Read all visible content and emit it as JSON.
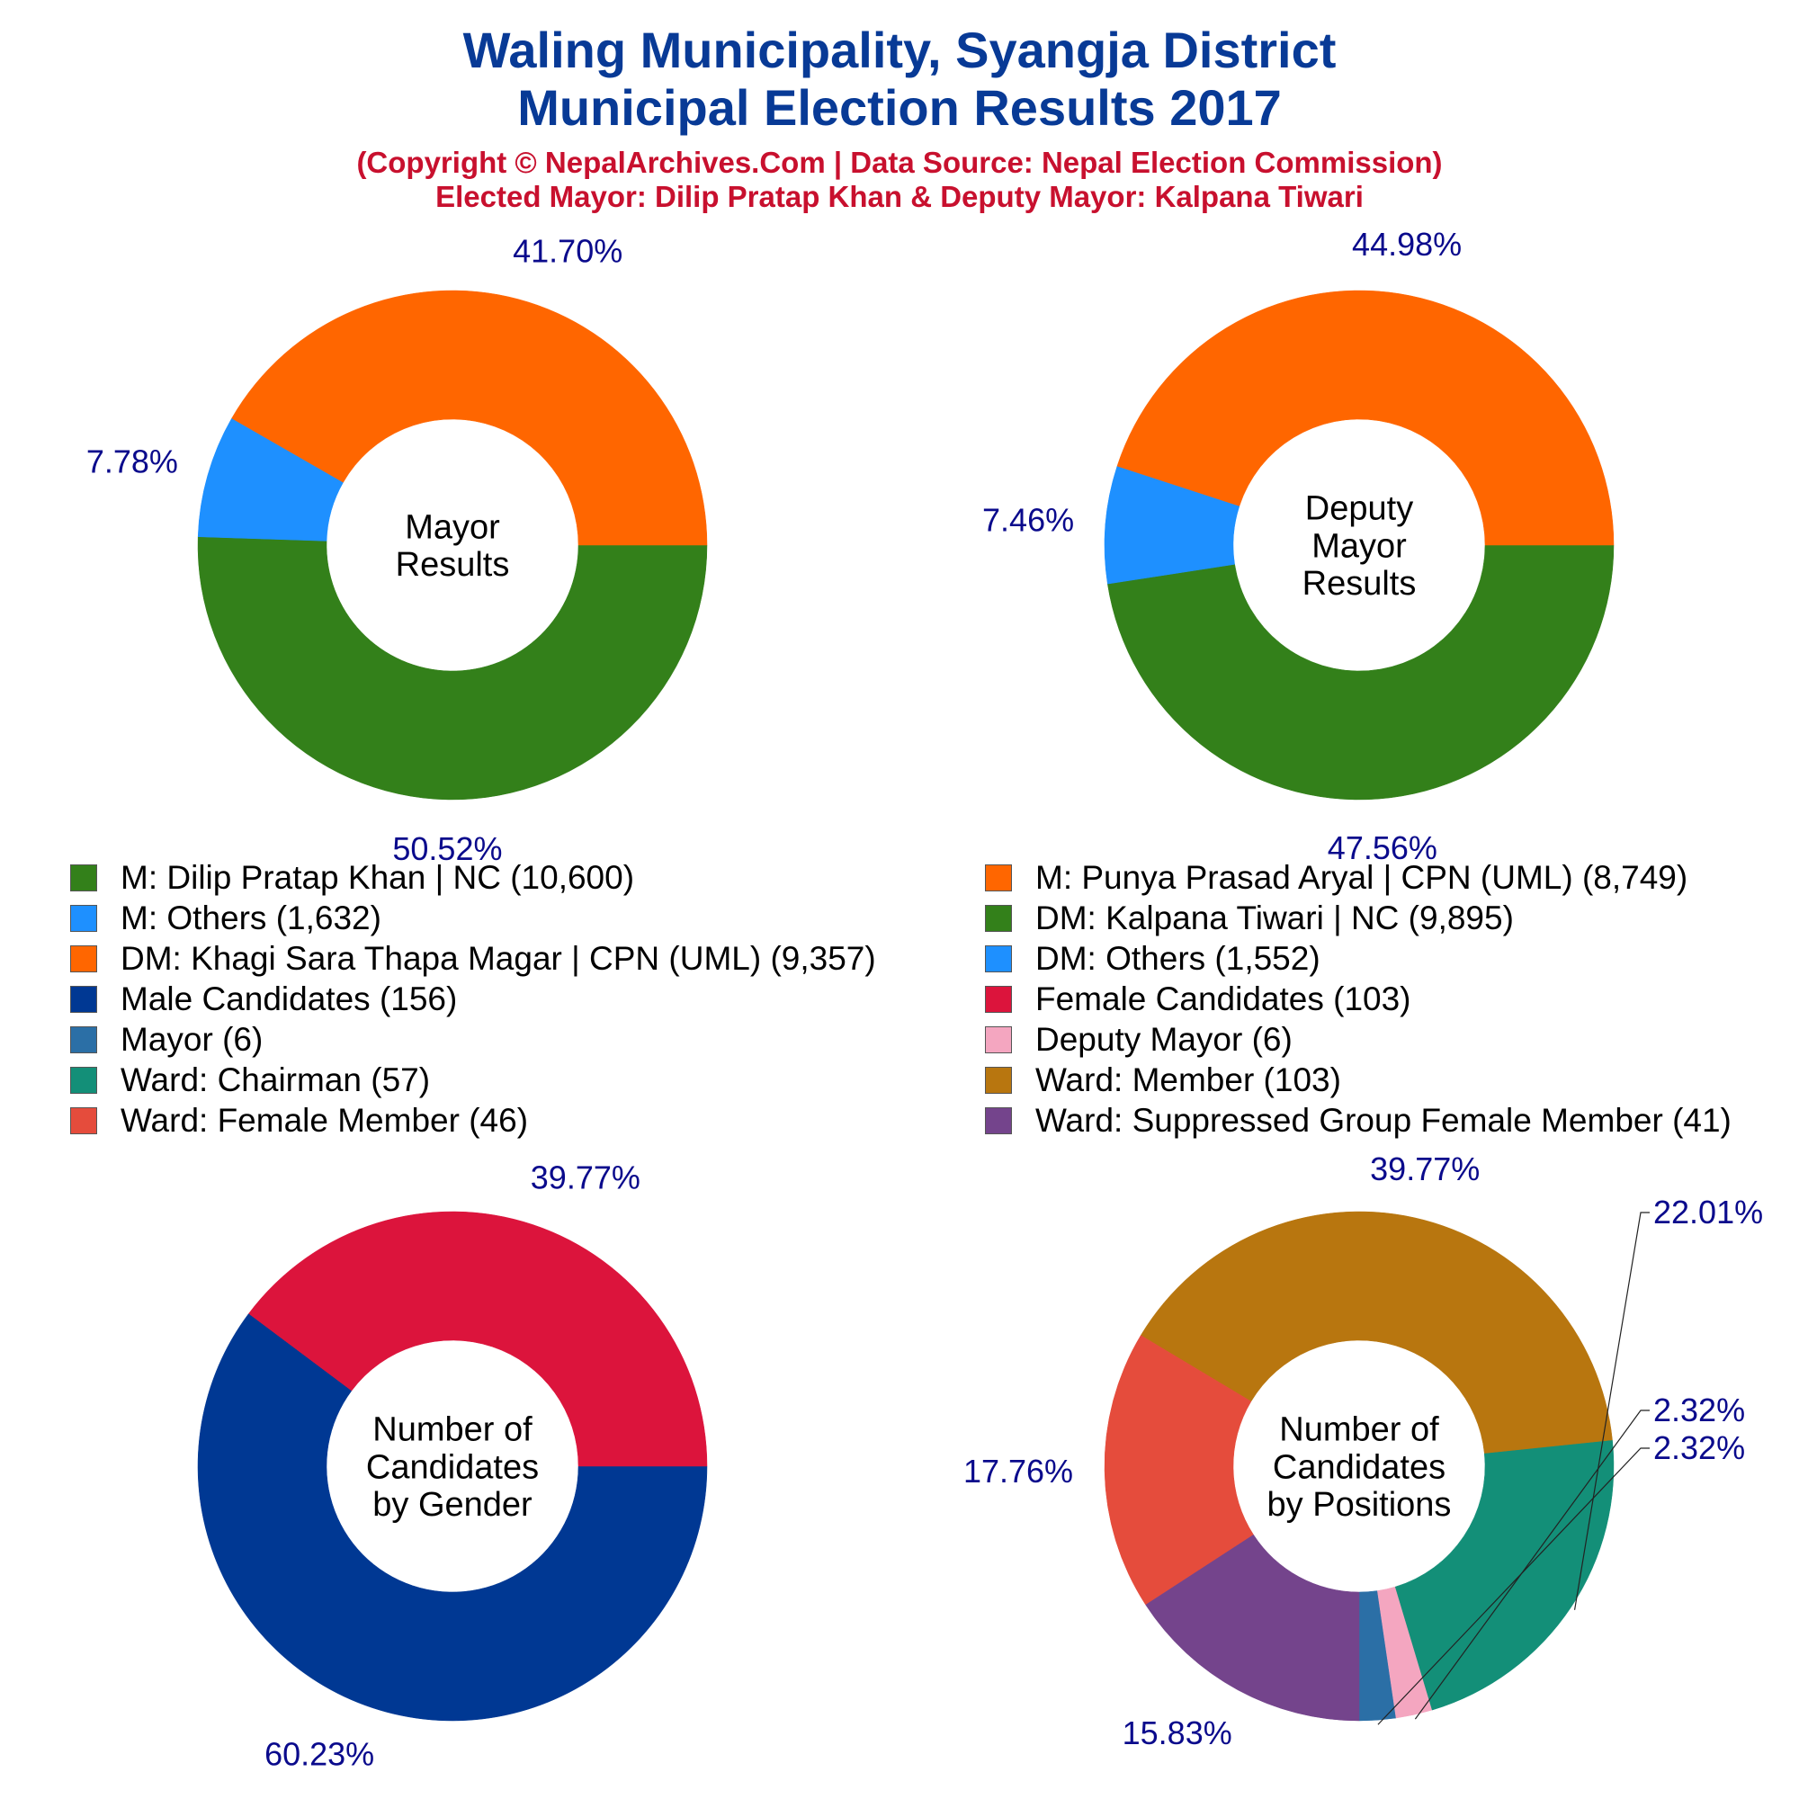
{
  "header": {
    "title_line1": "Waling Municipality, Syangja District",
    "title_line2": "Municipal Election Results 2017",
    "subtitle_line1": "(Copyright © NepalArchives.Com | Data Source: Nepal Election Commission)",
    "subtitle_line2": "Elected Mayor: Dilip Pratap Khan & Deputy Mayor: Kalpana Tiwari"
  },
  "colors": {
    "title": "#083a96",
    "subtitle": "#c8102e",
    "percent_label": "#0a0a8c"
  },
  "legend": [
    {
      "label": "M: Dilip Pratap Khan | NC (10,600)",
      "color": "#33801a"
    },
    {
      "label": "M: Punya Prasad Aryal | CPN (UML) (8,749)",
      "color": "#ff6600"
    },
    {
      "label": "M: Others (1,632)",
      "color": "#1e90ff"
    },
    {
      "label": "DM: Kalpana Tiwari | NC (9,895)",
      "color": "#33801a"
    },
    {
      "label": "DM: Khagi Sara Thapa Magar | CPN (UML) (9,357)",
      "color": "#ff6600"
    },
    {
      "label": "DM: Others (1,552)",
      "color": "#1e90ff"
    },
    {
      "label": "Male Candidates (156)",
      "color": "#003893"
    },
    {
      "label": "Female Candidates (103)",
      "color": "#dc143c"
    },
    {
      "label": "Mayor (6)",
      "color": "#2b6fa6"
    },
    {
      "label": "Deputy Mayor (6)",
      "color": "#f4a6c0"
    },
    {
      "label": "Ward: Chairman (57)",
      "color": "#138f78"
    },
    {
      "label": "Ward: Member (103)",
      "color": "#b8760f"
    },
    {
      "label": "Ward: Female Member (46)",
      "color": "#e54c3c"
    },
    {
      "label": "Ward: Suppressed Group Female Member (41)",
      "color": "#74448c"
    }
  ],
  "chart_data": [
    {
      "type": "pie",
      "center_label": [
        "Mayor",
        "Results"
      ],
      "slices": [
        {
          "label": "M: Dilip Pratap Khan | NC",
          "value": 10600,
          "percent_label": "50.52%",
          "color": "#33801a"
        },
        {
          "label": "M: Others",
          "value": 1632,
          "percent_label": "7.78%",
          "color": "#1e90ff"
        },
        {
          "label": "M: Punya Prasad Aryal | CPN (UML)",
          "value": 8749,
          "percent_label": "41.70%",
          "color": "#ff6600"
        }
      ]
    },
    {
      "type": "pie",
      "center_label": [
        "Deputy",
        "Mayor",
        "Results"
      ],
      "slices": [
        {
          "label": "DM: Kalpana Tiwari | NC",
          "value": 9895,
          "percent_label": "47.56%",
          "color": "#33801a"
        },
        {
          "label": "DM: Others",
          "value": 1552,
          "percent_label": "7.46%",
          "color": "#1e90ff"
        },
        {
          "label": "DM: Khagi Sara Thapa Magar | CPN (UML)",
          "value": 9357,
          "percent_label": "44.98%",
          "color": "#ff6600"
        }
      ]
    },
    {
      "type": "pie",
      "center_label": [
        "Number of",
        "Candidates",
        "by Gender"
      ],
      "slices": [
        {
          "label": "Male Candidates",
          "value": 156,
          "percent_label": "60.23%",
          "color": "#003893"
        },
        {
          "label": "Female Candidates",
          "value": 103,
          "percent_label": "39.77%",
          "color": "#dc143c"
        }
      ]
    },
    {
      "type": "pie",
      "center_label": [
        "Number of",
        "Candidates",
        "by Positions"
      ],
      "slices": [
        {
          "label": "Mayor",
          "value": 6,
          "percent_label": "2.32%",
          "color": "#2b6fa6"
        },
        {
          "label": "Deputy Mayor",
          "value": 6,
          "percent_label": "2.32%",
          "color": "#f4a6c0"
        },
        {
          "label": "Ward: Chairman",
          "value": 57,
          "percent_label": "22.01%",
          "color": "#138f78"
        },
        {
          "label": "Ward: Member",
          "value": 103,
          "percent_label": "39.77%",
          "color": "#b8760f"
        },
        {
          "label": "Ward: Female Member",
          "value": 46,
          "percent_label": "17.76%",
          "color": "#e54c3c"
        },
        {
          "label": "Ward: Suppressed Group Female Member",
          "value": 41,
          "percent_label": "15.83%",
          "color": "#74448c"
        }
      ]
    }
  ]
}
